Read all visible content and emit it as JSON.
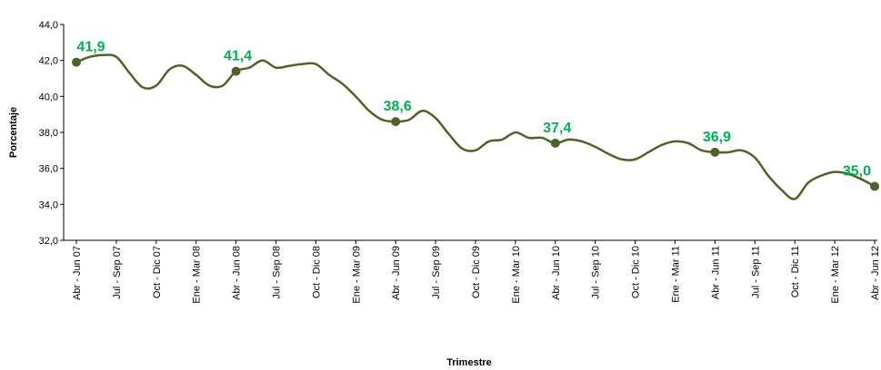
{
  "chart_data": {
    "type": "line",
    "x_label": "Trimestre",
    "y_label": "Porcentaje",
    "categories": [
      "Abr - Jun 07",
      null,
      null,
      "Jul - Sep 07",
      null,
      null,
      "Oct - Dic 07",
      null,
      null,
      "Ene - Mar 08",
      null,
      null,
      "Abr - Jun 08",
      null,
      null,
      "Jul - Sep 08",
      null,
      null,
      "Oct - Dic 08",
      null,
      null,
      "Ene - Mar 09",
      null,
      null,
      "Abr - Jun 09",
      null,
      null,
      "Jul - Sep 09",
      null,
      null,
      "Oct - Dic 09",
      null,
      null,
      "Ene - Mar 10",
      null,
      null,
      "Abr - Jun 10",
      null,
      null,
      "Jul - Sep 10",
      null,
      null,
      "Oct - Dic 10",
      null,
      null,
      "Ene - Mar 11",
      null,
      null,
      "Abr - Jun 11",
      null,
      null,
      "Jul - Sep 11",
      null,
      null,
      "Oct - Dic 11",
      null,
      null,
      "Ene - Mar 12",
      null,
      null,
      "Abr - Jun 12"
    ],
    "values": [
      41.9,
      42.2,
      42.3,
      42.2,
      41.3,
      40.5,
      40.6,
      41.5,
      41.7,
      41.2,
      40.6,
      40.6,
      41.4,
      41.6,
      42.0,
      41.6,
      41.7,
      41.8,
      41.8,
      41.2,
      40.7,
      40.0,
      39.2,
      38.7,
      38.6,
      38.7,
      39.2,
      38.8,
      37.9,
      37.1,
      37.0,
      37.5,
      37.6,
      38.0,
      37.7,
      37.7,
      37.4,
      37.6,
      37.5,
      37.2,
      36.8,
      36.5,
      36.5,
      36.9,
      37.3,
      37.5,
      37.4,
      37.0,
      36.9,
      36.9,
      37.0,
      36.6,
      35.6,
      34.8,
      34.3,
      35.2,
      35.6,
      35.8,
      35.7,
      35.4,
      35.0
    ],
    "value_labels": [
      "41,9",
      null,
      null,
      null,
      null,
      null,
      null,
      null,
      null,
      null,
      null,
      null,
      "41,4",
      null,
      null,
      null,
      null,
      null,
      null,
      null,
      null,
      null,
      null,
      null,
      "38,6",
      null,
      null,
      null,
      null,
      null,
      null,
      null,
      null,
      null,
      null,
      null,
      "37,4",
      null,
      null,
      null,
      null,
      null,
      null,
      null,
      null,
      null,
      null,
      null,
      "36,9",
      null,
      null,
      null,
      null,
      null,
      null,
      null,
      null,
      null,
      null,
      null,
      "35,0"
    ],
    "color": "#4f6228",
    "label_color": "#00b050",
    "ylim": [
      32,
      44
    ],
    "yticks": [
      {
        "value": 32,
        "label": "32,0"
      },
      {
        "value": 34,
        "label": "34,0"
      },
      {
        "value": 36,
        "label": "36,0"
      },
      {
        "value": 38,
        "label": "38,0"
      },
      {
        "value": 40,
        "label": "40,0"
      },
      {
        "value": 42,
        "label": "42,0"
      },
      {
        "value": 44,
        "label": "44,0"
      }
    ],
    "grid": false
  }
}
